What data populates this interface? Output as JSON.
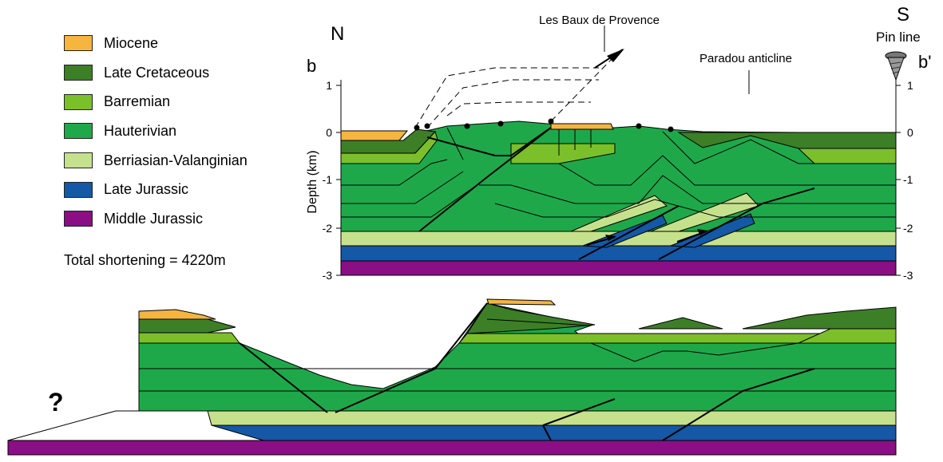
{
  "legend": {
    "items": [
      {
        "label": "Miocene",
        "color": "#f5b53f"
      },
      {
        "label": "Late Cretaceous",
        "color": "#3c7f27"
      },
      {
        "label": "Barremian",
        "color": "#7bbf2a"
      },
      {
        "label": "Hauterivian",
        "color": "#1fa84a"
      },
      {
        "label": "Berriasian-Valanginian",
        "color": "#c6e18c"
      },
      {
        "label": "Late Jurassic",
        "color": "#1458a6"
      },
      {
        "label": "Middle Jurassic",
        "color": "#8a0f85"
      }
    ]
  },
  "total_shortening": "Total shortening = 4220m",
  "section": {
    "north": "N",
    "south": "S",
    "start_label": "b",
    "end_label": "b'",
    "pin_line": "Pin line",
    "town_label": "Les Baux de Provence",
    "anticline_label": "Paradou anticline",
    "depth_axis_label": "Depth (km)",
    "depth_ticks": [
      "1",
      "0",
      "-1",
      "-2",
      "-3"
    ]
  },
  "restored": {
    "unknown_mark": "?"
  }
}
